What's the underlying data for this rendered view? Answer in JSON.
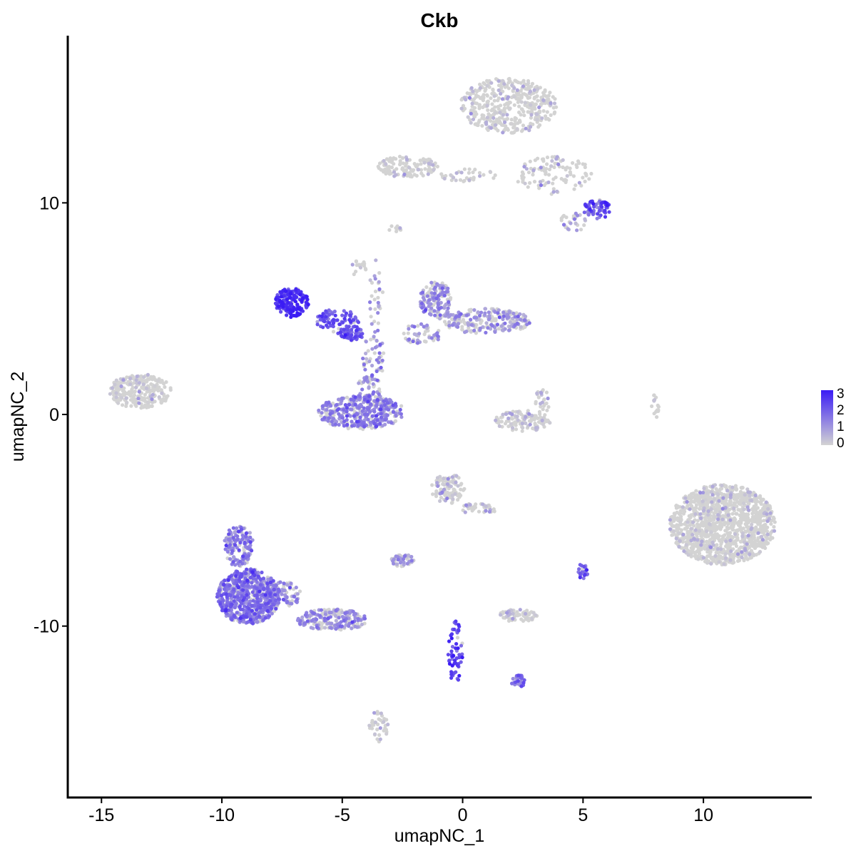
{
  "chart_data": {
    "type": "scatter",
    "title": "Ckb",
    "xlabel": "umapNC_1",
    "ylabel": "umapNC_2",
    "xlim": [
      -16.4,
      14.5
    ],
    "ylim": [
      -18.1,
      17.9
    ],
    "x_ticks": [
      -15,
      -10,
      -5,
      0,
      5,
      10
    ],
    "x_tick_labels": [
      "-15",
      "-10",
      "-5",
      "0",
      "5",
      "10"
    ],
    "y_ticks": [
      -10,
      0,
      10
    ],
    "y_tick_labels": [
      "-10",
      "0",
      "10"
    ],
    "grid": false,
    "legend": {
      "placement": "right",
      "type": "colorbar",
      "range": [
        0,
        3
      ],
      "labels": [
        "3",
        "2",
        "1",
        "0"
      ],
      "low_color": "#d3d3d3",
      "high_color": "#3b1cf5"
    },
    "clusters": [
      {
        "cx": 1.9,
        "cy": 14.6,
        "rx": 2.0,
        "ry": 1.3,
        "n": 420,
        "expr": 0.15
      },
      {
        "cx": 3.8,
        "cy": 11.3,
        "rx": 1.6,
        "ry": 0.9,
        "n": 110,
        "expr": 0.2
      },
      {
        "cx": -2.3,
        "cy": 11.7,
        "rx": 1.3,
        "ry": 0.5,
        "n": 120,
        "expr": 0.1
      },
      {
        "cx": 0.2,
        "cy": 11.3,
        "rx": 1.2,
        "ry": 0.3,
        "n": 35,
        "expr": 0.3
      },
      {
        "cx": 5.6,
        "cy": 9.7,
        "rx": 0.6,
        "ry": 0.45,
        "n": 70,
        "expr": 1.9
      },
      {
        "cx": 4.6,
        "cy": 9.1,
        "rx": 0.6,
        "ry": 0.45,
        "n": 30,
        "expr": 0.7
      },
      {
        "cx": -7.1,
        "cy": 5.3,
        "rx": 0.7,
        "ry": 0.7,
        "n": 170,
        "expr": 2.6
      },
      {
        "cx": -5.2,
        "cy": 4.4,
        "rx": 0.9,
        "ry": 0.6,
        "n": 80,
        "expr": 2.0
      },
      {
        "cx": -4.6,
        "cy": 3.8,
        "rx": 0.5,
        "ry": 0.3,
        "n": 60,
        "expr": 1.9
      },
      {
        "cx": -3.7,
        "cy": 2.6,
        "rx": 0.45,
        "ry": 1.3,
        "n": 45,
        "expr": 1.3
      },
      {
        "cx": -4.2,
        "cy": 0.1,
        "rx": 1.8,
        "ry": 0.8,
        "n": 380,
        "expr": 1.3
      },
      {
        "cx": -3.9,
        "cy": 1.0,
        "rx": 0.5,
        "ry": 0.9,
        "n": 60,
        "expr": 1.3
      },
      {
        "cx": -1.1,
        "cy": 5.4,
        "rx": 0.7,
        "ry": 0.9,
        "n": 150,
        "expr": 1.1
      },
      {
        "cx": 1.0,
        "cy": 4.4,
        "rx": 1.8,
        "ry": 0.6,
        "n": 240,
        "expr": 0.9
      },
      {
        "cx": -1.7,
        "cy": 3.8,
        "rx": 0.8,
        "ry": 0.5,
        "n": 50,
        "expr": 1.0
      },
      {
        "cx": -13.4,
        "cy": 1.1,
        "rx": 1.3,
        "ry": 0.8,
        "n": 260,
        "expr": 0.05
      },
      {
        "cx": -3.6,
        "cy": 5.5,
        "rx": 0.3,
        "ry": 1.8,
        "n": 30,
        "expr": 0.8
      },
      {
        "cx": 2.5,
        "cy": -0.3,
        "rx": 1.2,
        "ry": 0.5,
        "n": 120,
        "expr": 0.25
      },
      {
        "cx": 3.3,
        "cy": 0.6,
        "rx": 0.3,
        "ry": 0.6,
        "n": 25,
        "expr": 0.5
      },
      {
        "cx": 10.8,
        "cy": -5.2,
        "rx": 2.2,
        "ry": 1.9,
        "n": 1300,
        "expr": 0.02
      },
      {
        "cx": -0.6,
        "cy": -3.5,
        "rx": 0.7,
        "ry": 0.7,
        "n": 110,
        "expr": 0.3
      },
      {
        "cx": 0.6,
        "cy": -4.5,
        "rx": 0.8,
        "ry": 0.3,
        "n": 40,
        "expr": 0.3
      },
      {
        "cx": -8.9,
        "cy": -8.6,
        "rx": 1.3,
        "ry": 1.3,
        "n": 700,
        "expr": 1.5
      },
      {
        "cx": -9.3,
        "cy": -6.2,
        "rx": 0.6,
        "ry": 1.0,
        "n": 150,
        "expr": 1.3
      },
      {
        "cx": -5.4,
        "cy": -9.7,
        "rx": 1.5,
        "ry": 0.5,
        "n": 200,
        "expr": 1.1
      },
      {
        "cx": -7.5,
        "cy": -8.5,
        "rx": 0.8,
        "ry": 0.6,
        "n": 90,
        "expr": 1.2
      },
      {
        "cx": -2.5,
        "cy": -6.9,
        "rx": 0.5,
        "ry": 0.3,
        "n": 50,
        "expr": 0.9
      },
      {
        "cx": 5.0,
        "cy": -7.4,
        "rx": 0.2,
        "ry": 0.4,
        "n": 25,
        "expr": 1.8
      },
      {
        "cx": 2.3,
        "cy": -9.5,
        "rx": 0.8,
        "ry": 0.3,
        "n": 70,
        "expr": 0.1
      },
      {
        "cx": -0.3,
        "cy": -11.2,
        "rx": 0.3,
        "ry": 1.6,
        "n": 60,
        "expr": 2.2
      },
      {
        "cx": 2.3,
        "cy": -12.6,
        "rx": 0.3,
        "ry": 0.3,
        "n": 30,
        "expr": 1.6
      },
      {
        "cx": -3.5,
        "cy": -14.8,
        "rx": 0.4,
        "ry": 0.8,
        "n": 40,
        "expr": 0.2
      },
      {
        "cx": 8.0,
        "cy": 0.4,
        "rx": 0.15,
        "ry": 0.6,
        "n": 15,
        "expr": 0.05
      },
      {
        "cx": -4.3,
        "cy": 6.9,
        "rx": 0.3,
        "ry": 0.5,
        "n": 15,
        "expr": 0.05
      },
      {
        "cx": -2.8,
        "cy": 8.8,
        "rx": 0.3,
        "ry": 0.2,
        "n": 10,
        "expr": 0.05
      }
    ]
  }
}
